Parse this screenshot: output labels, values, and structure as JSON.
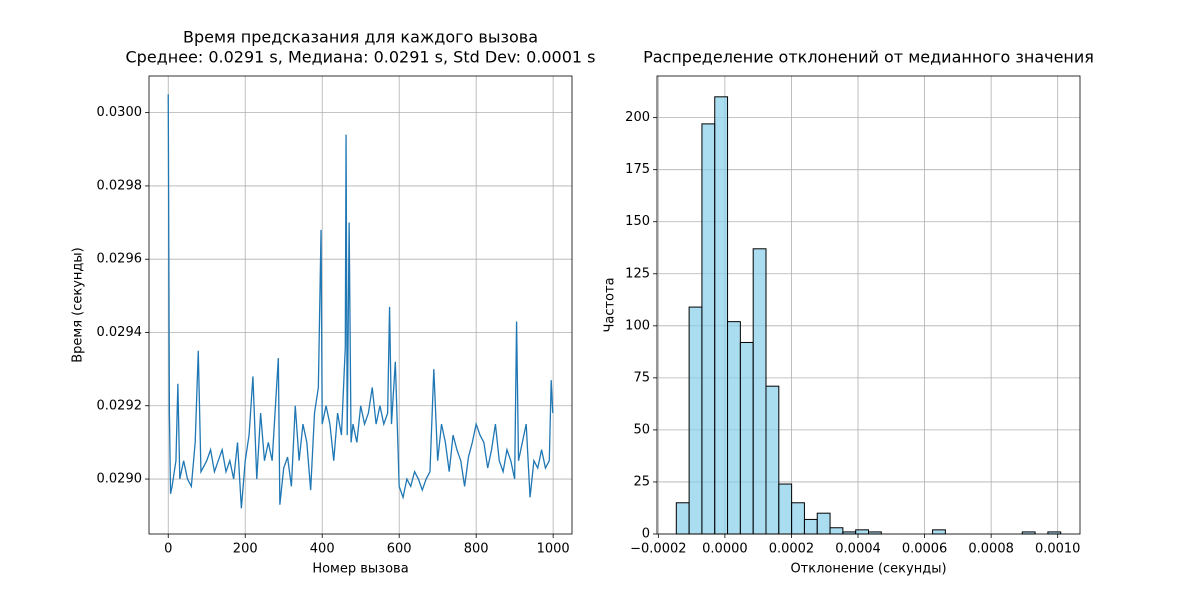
{
  "chart_data": [
    {
      "type": "line",
      "title": "Время предсказания для каждого вызова",
      "subtitle": "Среднее: 0.0291 s, Медиана: 0.0291 s, Std Dev: 0.0001 s",
      "x_label": "Номер вызова",
      "y_label": "Время (секунды)",
      "color": "#1f77b4",
      "grid": true,
      "xlim": [
        -50,
        1049
      ],
      "ylim": [
        0.02885,
        0.0301
      ],
      "xticks": [
        0,
        200,
        400,
        600,
        800,
        1000
      ],
      "yticks": [
        {
          "value": 0.029,
          "label": "0.0290"
        },
        {
          "value": 0.0292,
          "label": "0.0292"
        },
        {
          "value": 0.0294,
          "label": "0.0294"
        },
        {
          "value": 0.0296,
          "label": "0.0296"
        },
        {
          "value": 0.0298,
          "label": "0.0298"
        },
        {
          "value": 0.03,
          "label": "0.0300"
        }
      ],
      "x": [
        0,
        3,
        6,
        10,
        20,
        25,
        30,
        40,
        50,
        60,
        70,
        78,
        85,
        100,
        110,
        120,
        130,
        140,
        150,
        160,
        170,
        180,
        190,
        200,
        210,
        220,
        230,
        240,
        250,
        260,
        270,
        286,
        290,
        300,
        310,
        320,
        330,
        340,
        350,
        360,
        370,
        380,
        390,
        397,
        400,
        410,
        420,
        430,
        440,
        450,
        460,
        462,
        465,
        470,
        475,
        480,
        490,
        500,
        510,
        520,
        530,
        540,
        550,
        560,
        570,
        575,
        580,
        590,
        600,
        610,
        620,
        630,
        640,
        650,
        660,
        670,
        680,
        690,
        700,
        710,
        720,
        730,
        740,
        750,
        760,
        770,
        780,
        790,
        800,
        810,
        820,
        830,
        840,
        850,
        860,
        870,
        880,
        890,
        900,
        905,
        910,
        920,
        930,
        940,
        950,
        960,
        970,
        980,
        990,
        995,
        999
      ],
      "values": [
        0.03005,
        0.02918,
        0.02896,
        0.02898,
        0.02905,
        0.02926,
        0.029,
        0.02905,
        0.029,
        0.02898,
        0.0291,
        0.02935,
        0.02902,
        0.02905,
        0.02908,
        0.02902,
        0.02905,
        0.02908,
        0.02902,
        0.02905,
        0.029,
        0.0291,
        0.02892,
        0.02905,
        0.02912,
        0.02928,
        0.029,
        0.02918,
        0.02905,
        0.0291,
        0.02905,
        0.02933,
        0.02893,
        0.02903,
        0.02906,
        0.02898,
        0.0292,
        0.02905,
        0.02915,
        0.0291,
        0.02897,
        0.02918,
        0.02925,
        0.02968,
        0.02915,
        0.0292,
        0.02915,
        0.02905,
        0.02918,
        0.02912,
        0.02936,
        0.02994,
        0.02912,
        0.0297,
        0.0291,
        0.02915,
        0.0291,
        0.0292,
        0.02915,
        0.02918,
        0.02925,
        0.02915,
        0.0292,
        0.02915,
        0.02918,
        0.02947,
        0.02915,
        0.02932,
        0.02898,
        0.02895,
        0.029,
        0.02898,
        0.02902,
        0.029,
        0.02897,
        0.029,
        0.02902,
        0.0293,
        0.02905,
        0.02915,
        0.0291,
        0.02902,
        0.02912,
        0.02908,
        0.02905,
        0.02898,
        0.02906,
        0.0291,
        0.02915,
        0.02912,
        0.0291,
        0.02903,
        0.02908,
        0.02915,
        0.02905,
        0.02902,
        0.02908,
        0.02905,
        0.029,
        0.02943,
        0.02905,
        0.0291,
        0.02915,
        0.02895,
        0.02905,
        0.02903,
        0.02908,
        0.02903,
        0.02905,
        0.02927,
        0.02918
      ]
    },
    {
      "type": "histogram",
      "title": "Распределение отклонений от медианного значения",
      "x_label": "Отклонение (секунды)",
      "y_label": "Частота",
      "color": "#87ceeb",
      "edgecolor": "#000000",
      "grid": true,
      "xlim": [
        -0.000204,
        0.001067
      ],
      "ylim": [
        0,
        220
      ],
      "xticks": [
        {
          "value": -0.0002,
          "label": "−0.0002"
        },
        {
          "value": 0,
          "label": "0.0000"
        },
        {
          "value": 0.0002,
          "label": "0.0002"
        },
        {
          "value": 0.0004,
          "label": "0.0004"
        },
        {
          "value": 0.0006,
          "label": "0.0006"
        },
        {
          "value": 0.0008,
          "label": "0.0008"
        },
        {
          "value": 0.001,
          "label": "0.0010"
        }
      ],
      "yticks": [
        0,
        25,
        50,
        75,
        100,
        125,
        150,
        175,
        200
      ],
      "bins": [
        -0.000146,
        -0.0001075,
        -6.9e-05,
        -3.05e-05,
        8e-06,
        4.65e-05,
        8.5e-05,
        0.0001235,
        0.000162,
        0.0002005,
        0.000239,
        0.0002775,
        0.000316,
        0.0003545,
        0.000393,
        0.0004315,
        0.00047,
        0.0005085,
        0.000547,
        0.0005855,
        0.000624,
        0.0006625,
        0.000701,
        0.0007395,
        0.000778,
        0.0008165,
        0.000855,
        0.0008935,
        0.000932,
        0.0009705,
        0.001009
      ],
      "values": [
        15,
        109,
        197,
        210,
        102,
        92,
        137,
        71,
        24,
        15,
        7,
        10,
        3,
        1,
        2,
        1,
        0,
        0,
        0,
        0,
        2,
        0,
        0,
        0,
        0,
        0,
        0,
        1,
        0,
        1
      ]
    }
  ]
}
